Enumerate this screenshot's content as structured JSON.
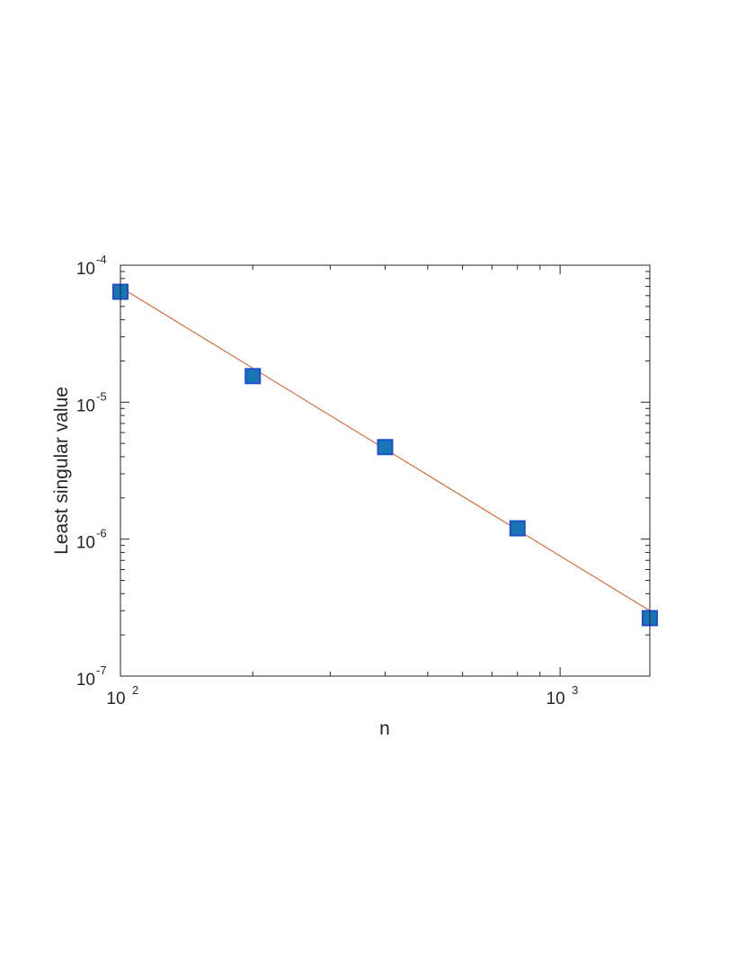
{
  "chart_data": {
    "type": "scatter",
    "title": "",
    "xlabel": "n",
    "ylabel": "Least singular value",
    "xscale": "log",
    "yscale": "log",
    "xlim": [
      100,
      1600
    ],
    "ylim": [
      1e-07,
      0.0001
    ],
    "grid": false,
    "legend": "none",
    "x_ticks": [
      {
        "base": "10",
        "exp": "2",
        "value": 100
      },
      {
        "base": "10",
        "exp": "3",
        "value": 1000
      }
    ],
    "y_ticks": [
      {
        "base": "10",
        "exp": "-7",
        "value": 1e-07
      },
      {
        "base": "10",
        "exp": "-6",
        "value": 1e-06
      },
      {
        "base": "10",
        "exp": "-5",
        "value": 1e-05
      },
      {
        "base": "10",
        "exp": "-4",
        "value": 0.0001
      }
    ],
    "series": [
      {
        "style": "markers",
        "marker": "square",
        "color": "#1f4fd0",
        "fill": "#1677b4",
        "x": [
          100,
          200,
          400,
          800,
          1600
        ],
        "y": [
          6.4e-05,
          1.55e-05,
          4.7e-06,
          1.2e-06,
          2.65e-07
        ]
      },
      {
        "style": "line",
        "color": "#d95319",
        "x": [
          100,
          1600
        ],
        "y": [
          6.9e-05,
          3e-07
        ]
      }
    ]
  }
}
